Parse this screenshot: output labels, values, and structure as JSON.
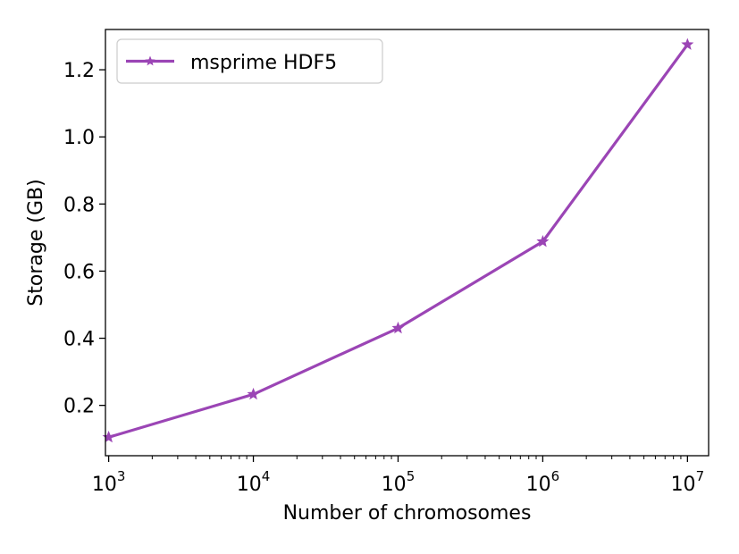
{
  "chart_data": {
    "type": "line",
    "title": "",
    "xlabel": "Number of chromosomes",
    "ylabel": "Storage (GB)",
    "xscale": "log",
    "xlim": [
      950,
      14000000
    ],
    "ylim": [
      0.05,
      1.32
    ],
    "x_ticks": [
      {
        "value": 1000,
        "base": "10",
        "exp": "3"
      },
      {
        "value": 10000,
        "base": "10",
        "exp": "4"
      },
      {
        "value": 100000,
        "base": "10",
        "exp": "5"
      },
      {
        "value": 1000000,
        "base": "10",
        "exp": "6"
      },
      {
        "value": 10000000,
        "base": "10",
        "exp": "7"
      }
    ],
    "y_ticks": [
      {
        "value": 0.2,
        "label": "0.2"
      },
      {
        "value": 0.4,
        "label": "0.4"
      },
      {
        "value": 0.6,
        "label": "0.6"
      },
      {
        "value": 0.8,
        "label": "0.8"
      },
      {
        "value": 1.0,
        "label": "1.0"
      },
      {
        "value": 1.2,
        "label": "1.2"
      }
    ],
    "grid": false,
    "legend_position": "top-left",
    "series": [
      {
        "name": "msprime HDF5",
        "color": "#9b45b5",
        "marker": "star",
        "x": [
          1000,
          10000,
          100000,
          1000000,
          10000000
        ],
        "y": [
          0.105,
          0.233,
          0.43,
          0.688,
          1.275
        ]
      }
    ]
  }
}
